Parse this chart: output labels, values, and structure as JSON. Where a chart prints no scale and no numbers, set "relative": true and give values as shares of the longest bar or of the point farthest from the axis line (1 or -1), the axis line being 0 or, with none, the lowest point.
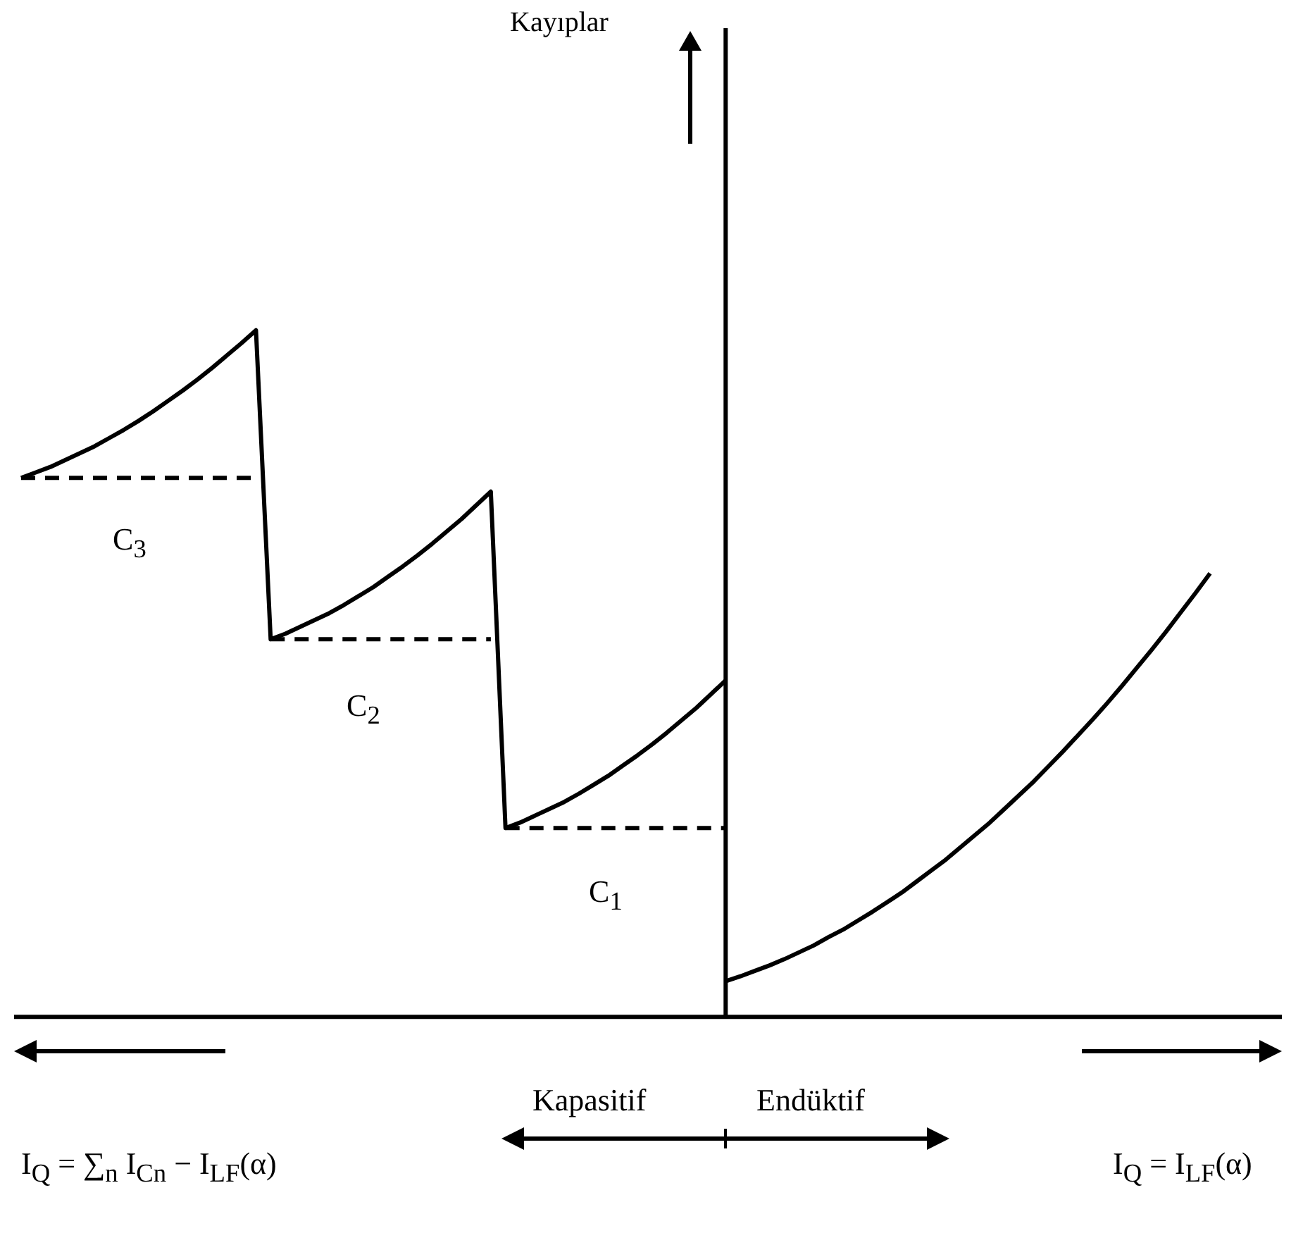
{
  "chart_data": {
    "type": "line",
    "relative": true,
    "grid": false,
    "legend": false,
    "categories": [
      null,
      null,
      null,
      null,
      null,
      null,
      null,
      null,
      null,
      null,
      null,
      null,
      null,
      null,
      null,
      null,
      null,
      null,
      null,
      null,
      null,
      null,
      null,
      null,
      null,
      null,
      null,
      null,
      null,
      null,
      null,
      null,
      null,
      null,
      null,
      null,
      null,
      null,
      null,
      null,
      null,
      null,
      null,
      null,
      null,
      null,
      null,
      null,
      null,
      null,
      null,
      null,
      null,
      null,
      null,
      null,
      null,
      null,
      null,
      null,
      null,
      null,
      null,
      null,
      null,
      null,
      null,
      null,
      null,
      null,
      null,
      null,
      null,
      null,
      null,
      null,
      null,
      null,
      null,
      null,
      null,
      null
    ],
    "series": [
      {
        "color": "#000000",
        "values": [
          0.785,
          0.793,
          0.801,
          0.811,
          0.821,
          0.831,
          0.843,
          0.855,
          0.868,
          0.882,
          0.897,
          0.912,
          0.928,
          0.945,
          0.963,
          0.981,
          1.0,
          0.55,
          0.558,
          0.568,
          0.578,
          0.588,
          0.6,
          0.613,
          0.626,
          0.641,
          0.656,
          0.672,
          0.689,
          0.707,
          0.725,
          0.745,
          0.765,
          0.275,
          0.283,
          0.293,
          0.303,
          0.313,
          0.325,
          0.338,
          0.351,
          0.366,
          0.381,
          0.397,
          0.414,
          0.432,
          0.45,
          0.47,
          0.49,
          null,
          null,
          null,
          null,
          null,
          null,
          null,
          null,
          null,
          null,
          null,
          null,
          null,
          null,
          null,
          null,
          null,
          null,
          null,
          null,
          null,
          null,
          null,
          null,
          null,
          null,
          null,
          null,
          null,
          null,
          null,
          null,
          null
        ]
      },
      {
        "color": "#000000",
        "values": [
          null,
          null,
          null,
          null,
          null,
          null,
          null,
          null,
          null,
          null,
          null,
          null,
          null,
          null,
          null,
          null,
          null,
          null,
          null,
          null,
          null,
          null,
          null,
          null,
          null,
          null,
          null,
          null,
          null,
          null,
          null,
          null,
          null,
          null,
          null,
          null,
          null,
          null,
          null,
          null,
          null,
          null,
          null,
          null,
          null,
          null,
          null,
          null,
          0.052,
          0.059,
          0.067,
          0.075,
          0.084,
          0.094,
          0.104,
          0.116,
          0.127,
          0.14,
          0.153,
          0.167,
          0.181,
          0.197,
          0.213,
          0.229,
          0.247,
          0.265,
          0.283,
          0.303,
          0.323,
          0.343,
          0.365,
          0.387,
          0.41,
          0.433,
          0.457,
          0.482,
          0.508,
          0.534,
          0.561,
          0.589,
          0.617,
          0.646
        ]
      },
      {
        "color": "#000000",
        "line_style": "dashed",
        "values": [
          0.785,
          0.785,
          0.785,
          0.785,
          0.785,
          0.785,
          0.785,
          0.785,
          0.785,
          0.785,
          0.785,
          0.785,
          0.785,
          0.785,
          0.785,
          0.785,
          0.785,
          null,
          null,
          null,
          null,
          null,
          null,
          null,
          null,
          null,
          null,
          null,
          null,
          null,
          null,
          null,
          null,
          null,
          null,
          null,
          null,
          null,
          null,
          null,
          null,
          null,
          null,
          null,
          null,
          null,
          null,
          null,
          null,
          null,
          null,
          null,
          null,
          null,
          null,
          null,
          null,
          null,
          null,
          null,
          null,
          null,
          null,
          null,
          null,
          null,
          null,
          null,
          null,
          null,
          null,
          null,
          null,
          null,
          null,
          null,
          null,
          null,
          null,
          null,
          null,
          null
        ]
      },
      {
        "color": "#000000",
        "line_style": "dashed",
        "values": [
          null,
          null,
          null,
          null,
          null,
          null,
          null,
          null,
          null,
          null,
          null,
          null,
          null,
          null,
          null,
          null,
          null,
          0.55,
          0.55,
          0.55,
          0.55,
          0.55,
          0.55,
          0.55,
          0.55,
          0.55,
          0.55,
          0.55,
          0.55,
          0.55,
          0.55,
          0.55,
          0.55,
          null,
          null,
          null,
          null,
          null,
          null,
          null,
          null,
          null,
          null,
          null,
          null,
          null,
          null,
          null,
          null,
          null,
          null,
          null,
          null,
          null,
          null,
          null,
          null,
          null,
          null,
          null,
          null,
          null,
          null,
          null,
          null,
          null,
          null,
          null,
          null,
          null,
          null,
          null,
          null,
          null,
          null,
          null,
          null,
          null,
          null,
          null,
          null,
          null
        ]
      },
      {
        "color": "#000000",
        "line_style": "dashed",
        "values": [
          null,
          null,
          null,
          null,
          null,
          null,
          null,
          null,
          null,
          null,
          null,
          null,
          null,
          null,
          null,
          null,
          null,
          null,
          null,
          null,
          null,
          null,
          null,
          null,
          null,
          null,
          null,
          null,
          null,
          null,
          null,
          null,
          null,
          0.275,
          0.275,
          0.275,
          0.275,
          0.275,
          0.275,
          0.275,
          0.275,
          0.275,
          0.275,
          0.275,
          0.275,
          0.275,
          0.275,
          0.275,
          0.275,
          null,
          null,
          null,
          null,
          null,
          null,
          null,
          null,
          null,
          null,
          null,
          null,
          null,
          null,
          null,
          null,
          null,
          null,
          null,
          null,
          null,
          null,
          null,
          null,
          null,
          null,
          null,
          null,
          null,
          null,
          null,
          null,
          null
        ]
      }
    ],
    "annotations": [
      "C$_{3}$",
      "C$_{2}$",
      "C$_{1}$",
      "Kapasitif",
      "Endüktif",
      "I$_{Q}$ = ∑$_{n}$ I$_{Cn}$ − I$_{LF}$(α)",
      "I$_{Q}$ = I$_{LF}$(α)",
      "Kayıplar"
    ]
  }
}
